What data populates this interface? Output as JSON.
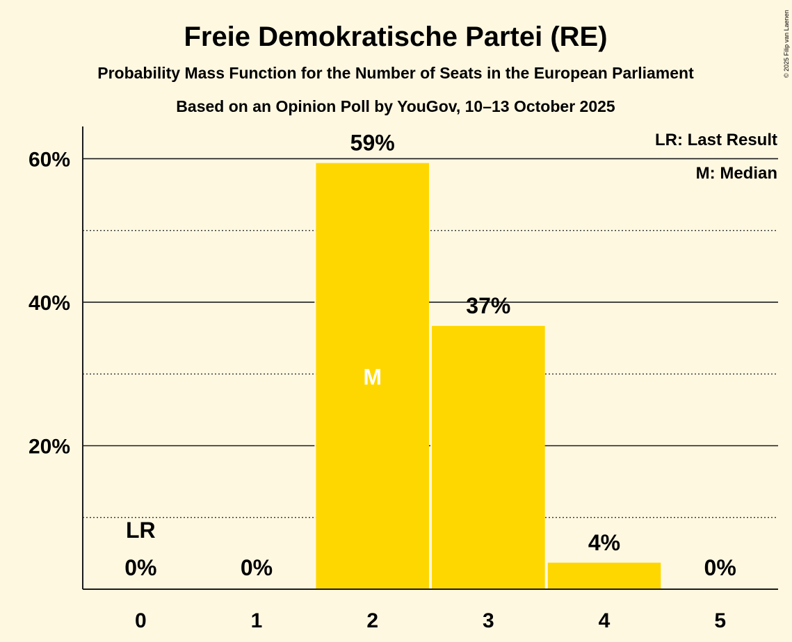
{
  "chart_data": {
    "type": "bar",
    "title": "Freie Demokratische Partei (RE)",
    "subtitle": "Probability Mass Function for the Number of Seats in the European Parliament",
    "subtitle2": "Based on an Opinion Poll by YouGov, 10–13 October 2025",
    "categories": [
      "0",
      "1",
      "2",
      "3",
      "4",
      "5"
    ],
    "values": [
      0,
      0,
      59.4,
      36.7,
      3.7,
      0
    ],
    "value_labels": [
      "0%",
      "0%",
      "59%",
      "37%",
      "4%",
      "0%"
    ],
    "ylim": [
      0,
      64.5
    ],
    "y_major_ticks": [
      20,
      40,
      60
    ],
    "y_major_tick_labels": [
      "20%",
      "40%",
      "60%"
    ],
    "y_minor_ticks": [
      10,
      30,
      50
    ],
    "last_result_index": 0,
    "last_result_marker": "LR",
    "median_index": 2,
    "median_marker": "M",
    "legend": {
      "placement": "top-right",
      "items": [
        "LR: Last Result",
        "M: Median"
      ]
    },
    "copyright": "© 2025 Filip van Laenen",
    "colors": {
      "bar": "#ffd700",
      "background": "#fff8e1",
      "text": "#1a1a1a",
      "median_text": "#ffffff"
    }
  }
}
